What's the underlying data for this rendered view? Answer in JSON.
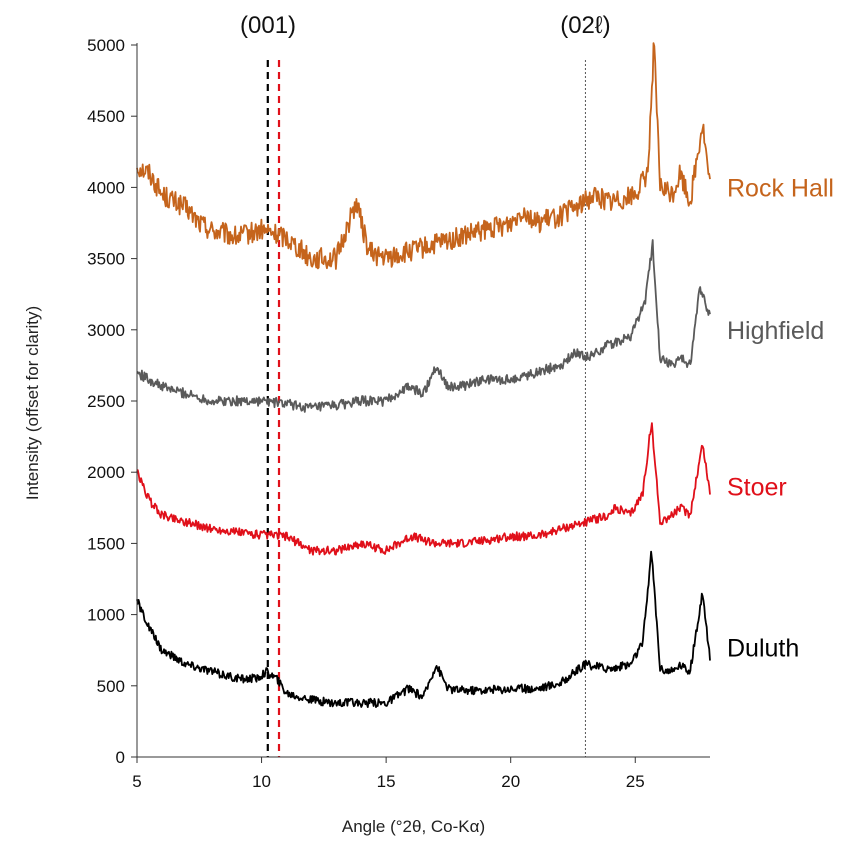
{
  "chart_data": {
    "type": "line",
    "title": "",
    "xlabel": "Angle (°2θ, Co-Kα)",
    "ylabel": "Intensity (offset for clarity)",
    "xlim": [
      5,
      28
    ],
    "ylim": [
      0,
      5000
    ],
    "xticks": [
      5,
      10,
      15,
      20,
      25
    ],
    "yticks": [
      0,
      500,
      1000,
      1500,
      2000,
      2500,
      3000,
      3500,
      4000,
      4500,
      5000
    ],
    "grid": false,
    "legend": "labels at right end of each trace",
    "annotations": [
      {
        "text": "(001)",
        "x": 10.5,
        "kind": "label"
      },
      {
        "text": "(02ℓ)",
        "x": 23.0,
        "kind": "label"
      }
    ],
    "reference_lines": [
      {
        "x": 10.25,
        "style": "dashed",
        "color": "#000000"
      },
      {
        "x": 10.7,
        "style": "dashed",
        "color": "#e0101a"
      },
      {
        "x": 23.0,
        "style": "dotted",
        "color": "#555555"
      }
    ],
    "series": [
      {
        "name": "Rock Hall",
        "color": "#c5641c",
        "x": [
          5.0,
          5.5,
          6.0,
          6.5,
          7.0,
          7.5,
          8.0,
          9.0,
          10.0,
          11.0,
          12.0,
          13.0,
          13.8,
          14.3,
          15.0,
          16.0,
          17.0,
          18.0,
          19.0,
          20.0,
          20.5,
          21.0,
          22.0,
          23.0,
          23.3,
          24.0,
          25.0,
          25.5,
          25.75,
          26.0,
          26.5,
          26.8,
          27.2,
          27.7,
          28.0
        ],
        "y": [
          4150,
          4100,
          3950,
          3900,
          3850,
          3750,
          3700,
          3650,
          3700,
          3650,
          3500,
          3500,
          3900,
          3550,
          3500,
          3550,
          3600,
          3650,
          3700,
          3750,
          3850,
          3750,
          3800,
          3900,
          3950,
          3900,
          3950,
          4100,
          5000,
          4000,
          3950,
          4100,
          3900,
          4450,
          4000
        ]
      },
      {
        "name": "Highfield",
        "color": "#5a5a5a",
        "x": [
          5.0,
          5.5,
          6.0,
          7.0,
          8.0,
          9.0,
          10.0,
          11.0,
          12.0,
          13.0,
          14.0,
          15.0,
          15.9,
          16.5,
          17.0,
          17.5,
          18.0,
          19.0,
          20.0,
          21.0,
          22.0,
          22.7,
          23.0,
          24.0,
          24.8,
          25.4,
          25.7,
          26.0,
          26.5,
          26.8,
          27.2,
          27.6,
          28.0
        ],
        "y": [
          2700,
          2650,
          2600,
          2550,
          2500,
          2500,
          2500,
          2480,
          2450,
          2470,
          2500,
          2500,
          2600,
          2550,
          2750,
          2600,
          2600,
          2650,
          2650,
          2700,
          2750,
          2850,
          2800,
          2900,
          2950,
          3200,
          3600,
          2800,
          2750,
          2800,
          2750,
          3300,
          3100
        ]
      },
      {
        "name": "Stoer",
        "color": "#e0101a",
        "x": [
          5.0,
          5.5,
          6.0,
          7.0,
          8.0,
          9.0,
          10.0,
          11.0,
          12.0,
          13.0,
          14.0,
          15.0,
          16.0,
          17.0,
          18.0,
          19.0,
          20.0,
          21.0,
          22.0,
          23.0,
          24.0,
          24.2,
          24.8,
          25.3,
          25.65,
          26.0,
          26.5,
          26.8,
          27.2,
          27.7,
          28.0
        ],
        "y": [
          2000,
          1800,
          1700,
          1650,
          1600,
          1580,
          1560,
          1550,
          1450,
          1450,
          1500,
          1450,
          1550,
          1500,
          1500,
          1520,
          1550,
          1550,
          1600,
          1650,
          1700,
          1750,
          1700,
          1850,
          2350,
          1650,
          1700,
          1750,
          1700,
          2200,
          1850
        ]
      },
      {
        "name": "Duluth",
        "color": "#000000",
        "x": [
          5.0,
          5.5,
          6.0,
          7.0,
          8.0,
          9.0,
          9.8,
          10.2,
          10.6,
          11.0,
          12.0,
          13.0,
          14.0,
          15.0,
          15.9,
          16.5,
          17.0,
          17.5,
          18.0,
          19.0,
          20.0,
          21.0,
          22.0,
          23.0,
          24.0,
          24.8,
          25.3,
          25.65,
          26.0,
          26.5,
          26.8,
          27.2,
          27.7,
          28.0
        ],
        "y": [
          1100,
          900,
          750,
          650,
          600,
          550,
          550,
          600,
          550,
          450,
          400,
          380,
          380,
          380,
          480,
          420,
          650,
          480,
          470,
          470,
          480,
          480,
          520,
          650,
          620,
          650,
          800,
          1450,
          620,
          600,
          650,
          600,
          1150,
          700
        ]
      }
    ]
  }
}
